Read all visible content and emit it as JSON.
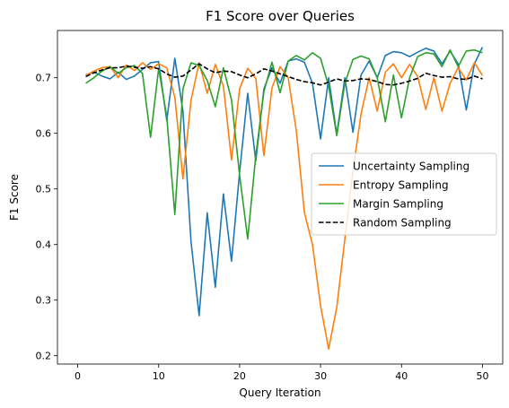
{
  "chart_data": {
    "type": "line",
    "title": "F1 Score over Queries",
    "xlabel": "Query Iteration",
    "ylabel": "F1 Score",
    "xlim": [
      -2.5,
      52.5
    ],
    "ylim": [
      0.185,
      0.785
    ],
    "xticks": [
      0,
      10,
      20,
      30,
      40,
      50
    ],
    "yticks": [
      0.2,
      0.3,
      0.4,
      0.5,
      0.6,
      0.7
    ],
    "grid": false,
    "legend_position": "center-right",
    "x": [
      1,
      2,
      3,
      4,
      5,
      6,
      7,
      8,
      9,
      10,
      11,
      12,
      13,
      14,
      15,
      16,
      17,
      18,
      19,
      20,
      21,
      22,
      23,
      24,
      25,
      26,
      27,
      28,
      29,
      30,
      31,
      32,
      33,
      34,
      35,
      36,
      37,
      38,
      39,
      40,
      41,
      42,
      43,
      44,
      45,
      46,
      47,
      48,
      49,
      50
    ],
    "series": [
      {
        "name": "Uncertainty Sampling",
        "color": "#1f77b4",
        "dash": "solid",
        "values": [
          0.705,
          0.71,
          0.703,
          0.698,
          0.71,
          0.697,
          0.703,
          0.715,
          0.727,
          0.729,
          0.623,
          0.735,
          0.64,
          0.405,
          0.272,
          0.457,
          0.323,
          0.491,
          0.37,
          0.53,
          0.672,
          0.55,
          0.68,
          0.718,
          0.69,
          0.73,
          0.734,
          0.728,
          0.69,
          0.59,
          0.7,
          0.598,
          0.7,
          0.602,
          0.705,
          0.73,
          0.7,
          0.74,
          0.747,
          0.745,
          0.738,
          0.746,
          0.753,
          0.748,
          0.725,
          0.748,
          0.725,
          0.642,
          0.725,
          0.755
        ]
      },
      {
        "name": "Entropy Sampling",
        "color": "#ff7f0e",
        "dash": "solid",
        "values": [
          0.704,
          0.712,
          0.718,
          0.72,
          0.7,
          0.723,
          0.713,
          0.727,
          0.715,
          0.725,
          0.718,
          0.665,
          0.518,
          0.66,
          0.727,
          0.672,
          0.724,
          0.685,
          0.552,
          0.68,
          0.717,
          0.699,
          0.56,
          0.682,
          0.72,
          0.7,
          0.605,
          0.458,
          0.4,
          0.29,
          0.212,
          0.287,
          0.41,
          0.532,
          0.635,
          0.7,
          0.64,
          0.71,
          0.725,
          0.7,
          0.724,
          0.702,
          0.643,
          0.7,
          0.64,
          0.69,
          0.718,
          0.696,
          0.727,
          0.704
        ]
      },
      {
        "name": "Margin Sampling",
        "color": "#2ca02c",
        "dash": "solid",
        "values": [
          0.69,
          0.7,
          0.712,
          0.72,
          0.708,
          0.718,
          0.722,
          0.708,
          0.593,
          0.717,
          0.63,
          0.454,
          0.68,
          0.727,
          0.722,
          0.695,
          0.648,
          0.718,
          0.66,
          0.525,
          0.41,
          0.56,
          0.675,
          0.728,
          0.673,
          0.73,
          0.74,
          0.732,
          0.745,
          0.735,
          0.685,
          0.596,
          0.69,
          0.733,
          0.739,
          0.734,
          0.7,
          0.621,
          0.705,
          0.628,
          0.7,
          0.738,
          0.745,
          0.743,
          0.72,
          0.75,
          0.72,
          0.748,
          0.75,
          0.745
        ]
      },
      {
        "name": "Random Sampling",
        "color": "#000000",
        "dash": "dashed",
        "values": [
          0.702,
          0.709,
          0.714,
          0.718,
          0.718,
          0.721,
          0.719,
          0.717,
          0.72,
          0.716,
          0.707,
          0.701,
          0.703,
          0.714,
          0.725,
          0.716,
          0.709,
          0.712,
          0.711,
          0.705,
          0.7,
          0.707,
          0.716,
          0.712,
          0.707,
          0.702,
          0.697,
          0.693,
          0.691,
          0.687,
          0.692,
          0.698,
          0.694,
          0.695,
          0.698,
          0.697,
          0.693,
          0.688,
          0.687,
          0.69,
          0.694,
          0.699,
          0.708,
          0.704,
          0.701,
          0.702,
          0.698,
          0.697,
          0.703,
          0.698
        ]
      }
    ]
  }
}
